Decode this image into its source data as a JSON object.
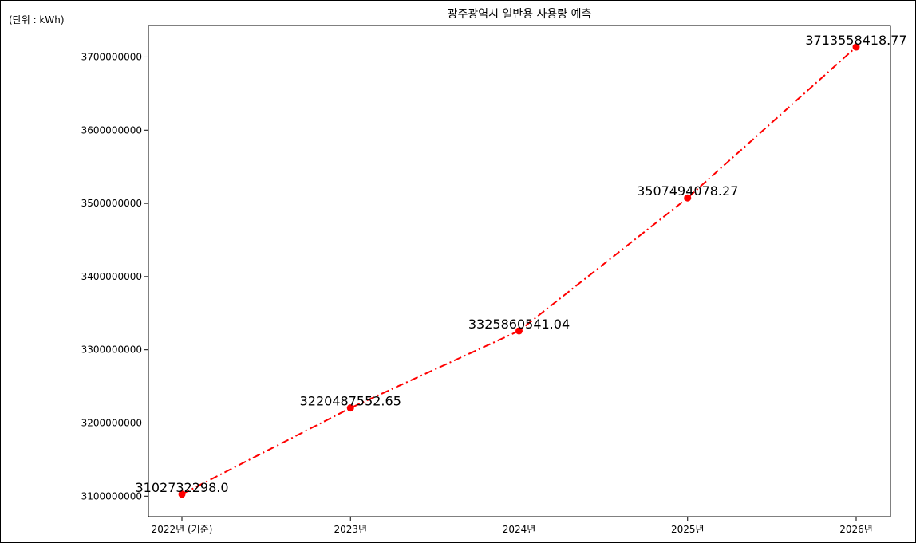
{
  "unit_note": "(단위 : kWh)",
  "chart_data": {
    "type": "line",
    "title": "광주광역시 일반용 사용량 예측",
    "xlabel": "",
    "ylabel": "",
    "categories": [
      "2022년 (기준)",
      "2023년",
      "2024년",
      "2025년",
      "2026년"
    ],
    "series": [
      {
        "values": [
          3102732298.0,
          3220487552.65,
          3325860541.04,
          3507494078.27,
          3713558418.77
        ],
        "color": "#ff0000",
        "line_style": "dash-dot",
        "marker": "circle"
      }
    ],
    "data_labels": [
      "3102732298.0",
      "3220487552.65",
      "3325860541.04",
      "3507494078.27",
      "3713558418.77"
    ],
    "yticks": [
      3100000000,
      3200000000,
      3300000000,
      3400000000,
      3500000000,
      3600000000,
      3700000000
    ],
    "ytick_labels": [
      "3100000000",
      "3200000000",
      "3300000000",
      "3400000000",
      "3500000000",
      "3600000000",
      "3700000000"
    ],
    "ylim": [
      3072000000,
      3743000000
    ],
    "grid": false,
    "legend": "none"
  }
}
